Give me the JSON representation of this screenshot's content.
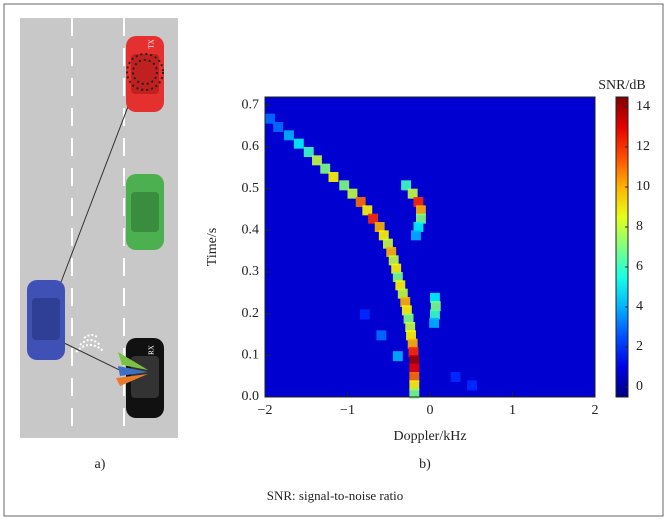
{
  "chart_data": {
    "type": "heatmap",
    "panel_labels": [
      "a)",
      "b)"
    ],
    "car_labels": [
      "TX",
      "RX"
    ],
    "caption": "SNR: signal-to-noise ratio",
    "xlabel": "Doppler/kHz",
    "ylabel": "Time/s",
    "colorbar_label": "SNR/dB",
    "xlim": [
      -2,
      2
    ],
    "ylim": [
      0,
      0.72
    ],
    "clim": [
      -0.5,
      14.5
    ],
    "xticks": [
      {
        "value": -2,
        "label": "−2"
      },
      {
        "value": -1,
        "label": "−1"
      },
      0,
      1,
      2
    ],
    "yticks": [
      {
        "value": 0,
        "label": "0.0"
      },
      0.1,
      0.2,
      0.3,
      0.4,
      0.5,
      0.6,
      0.7
    ],
    "cticks": [
      0,
      2,
      4,
      6,
      8,
      10,
      12,
      14
    ],
    "colormap": "jet",
    "x": [
      -1.95,
      -1.85,
      -1.72,
      -1.6,
      -1.48,
      -1.38,
      -1.28,
      -1.18,
      -1.05,
      -0.95,
      -0.85,
      -0.77,
      -0.7,
      -0.62,
      -0.57,
      -0.52,
      -0.48,
      -0.45,
      -0.42,
      -0.4,
      -0.37,
      -0.34,
      -0.31,
      -0.29,
      -0.27,
      -0.25,
      -0.24,
      -0.22,
      -0.21,
      -0.2,
      -0.2,
      -0.2,
      -0.2,
      -0.2,
      -0.3,
      -0.22,
      -0.15,
      -0.12,
      -0.12,
      -0.15,
      -0.18,
      0.05,
      0.06,
      0.05,
      0.04,
      0.3,
      0.5,
      -0.8,
      -0.6,
      -0.4
    ],
    "y": [
      0.67,
      0.65,
      0.63,
      0.61,
      0.59,
      0.57,
      0.55,
      0.53,
      0.51,
      0.49,
      0.47,
      0.45,
      0.43,
      0.41,
      0.39,
      0.37,
      0.35,
      0.33,
      0.31,
      0.29,
      0.27,
      0.25,
      0.23,
      0.21,
      0.19,
      0.17,
      0.15,
      0.13,
      0.11,
      0.09,
      0.07,
      0.05,
      0.03,
      0.01,
      0.51,
      0.49,
      0.47,
      0.45,
      0.43,
      0.41,
      0.39,
      0.24,
      0.22,
      0.2,
      0.18,
      0.05,
      0.03,
      0.2,
      0.15,
      0.1
    ],
    "values": [
      3,
      3,
      4,
      5,
      6,
      8,
      7,
      9,
      7,
      8,
      11,
      9,
      12,
      10,
      9,
      8,
      10,
      8,
      9,
      7,
      9,
      8,
      10,
      9,
      7,
      8,
      9,
      10,
      12,
      14,
      13,
      11,
      9,
      7,
      6,
      8,
      12,
      10,
      7,
      5,
      4,
      5,
      7,
      6,
      4,
      2,
      2,
      2,
      3,
      4
    ]
  }
}
